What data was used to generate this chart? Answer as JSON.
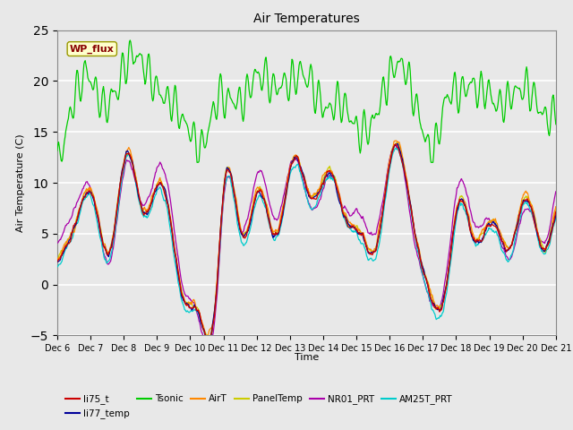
{
  "title": "Air Temperatures",
  "ylabel": "Air Temperature (C)",
  "xlabel": "Time",
  "ylim": [
    -5,
    25
  ],
  "yticks": [
    -5,
    0,
    5,
    10,
    15,
    20,
    25
  ],
  "xtick_labels": [
    "Dec 6",
    "Dec 7",
    "Dec 8",
    "Dec 9",
    "Dec 10",
    "Dec 11",
    "Dec 12",
    "Dec 13",
    "Dec 14",
    "Dec 15",
    "Dec 16",
    "Dec 17",
    "Dec 18",
    "Dec 19",
    "Dec 20",
    "Dec 21"
  ],
  "series_colors": {
    "li75_t": "#cc0000",
    "li77_temp": "#000099",
    "Tsonic": "#00cc00",
    "AirT": "#ff8800",
    "PanelTemp": "#cccc00",
    "NR01_PRT": "#aa00aa",
    "AM25T_PRT": "#00cccc"
  },
  "annotation_text": "WP_flux",
  "annotation_color": "#880000",
  "annotation_bg": "#ffffcc",
  "background_color": "#e8e8e8",
  "fig_facecolor": "#e8e8e8",
  "grid_color": "#ffffff"
}
